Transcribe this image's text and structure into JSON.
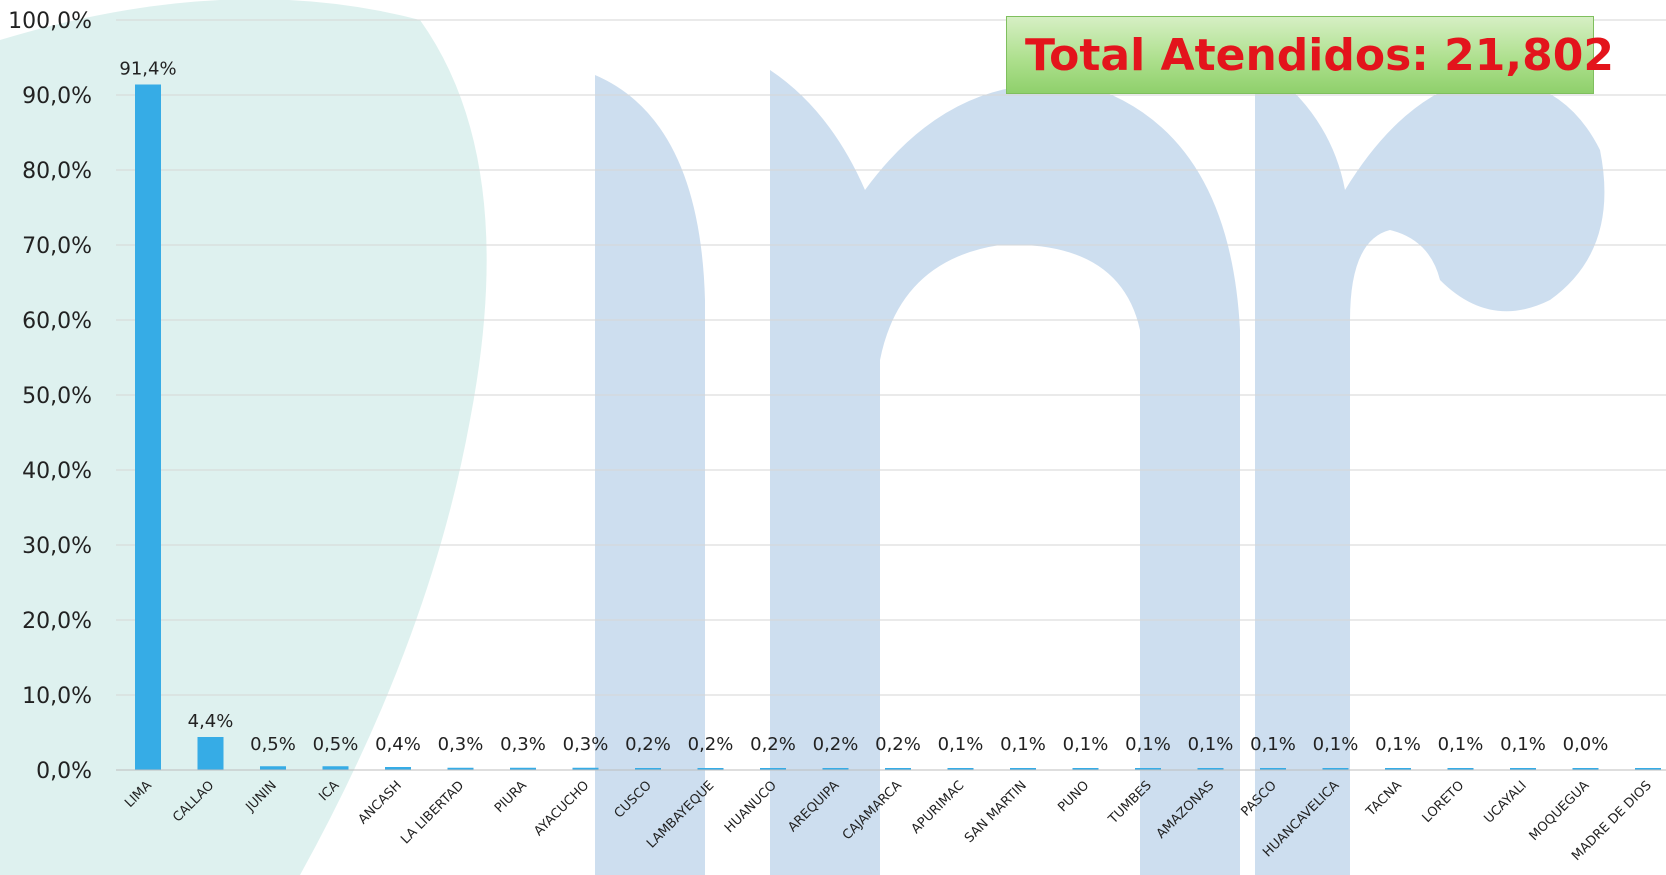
{
  "total_box": {
    "label": "Total Atendidos: 21,802"
  },
  "colors": {
    "bar": "#36ace6",
    "grid": "#d6d6d6",
    "text": "#222222",
    "watermark": "#bcd3ea",
    "watermark_teal": "#cde9e6",
    "total_text": "#e3141c"
  },
  "chart_data": {
    "type": "bar",
    "categories": [
      "LIMA",
      "CALLAO",
      "JUNIN",
      "ICA",
      "ANCASH",
      "LA LIBERTAD",
      "PIURA",
      "AYACUCHO",
      "CUSCO",
      "LAMBAYEQUE",
      "HUANUCO",
      "AREQUIPA",
      "CAJAMARCA",
      "APURIMAC",
      "SAN MARTIN",
      "PUNO",
      "TUMBES",
      "AMAZONAS",
      "PASCO",
      "HUANCAVELICA",
      "TACNA",
      "LORETO",
      "UCAYALI",
      "MOQUEGUA",
      "MADRE DE DIOS"
    ],
    "values": [
      91.4,
      4.4,
      0.5,
      0.5,
      0.4,
      0.3,
      0.3,
      0.3,
      0.2,
      0.2,
      0.2,
      0.2,
      0.2,
      0.1,
      0.1,
      0.1,
      0.1,
      0.1,
      0.1,
      0.1,
      0.1,
      0.1,
      0.1,
      0.0,
      0.0
    ],
    "data_labels": [
      "91,4%",
      "4,4%",
      "0,5%",
      "0,5%",
      "0,4%",
      "0,3%",
      "0,3%",
      "0,3%",
      "0,2%",
      "0,2%",
      "0,2%",
      "0,2%",
      "0,2%",
      "0,1%",
      "0,1%",
      "0,1%",
      "0,1%",
      "0,1%",
      "0,1%",
      "0,1%",
      "0,1%",
      "0,1%",
      "0,1%",
      "0,0%",
      ""
    ],
    "ylim": [
      0,
      100
    ],
    "yticks": [
      0,
      10,
      20,
      30,
      40,
      50,
      60,
      70,
      80,
      90,
      100
    ],
    "ytick_labels": [
      "0,0%",
      "10,0%",
      "20,0%",
      "30,0%",
      "40,0%",
      "50,0%",
      "60,0%",
      "70,0%",
      "80,0%",
      "90,0%",
      "100,0%"
    ],
    "grid": true,
    "title": "",
    "xlabel": "",
    "ylabel": ""
  }
}
